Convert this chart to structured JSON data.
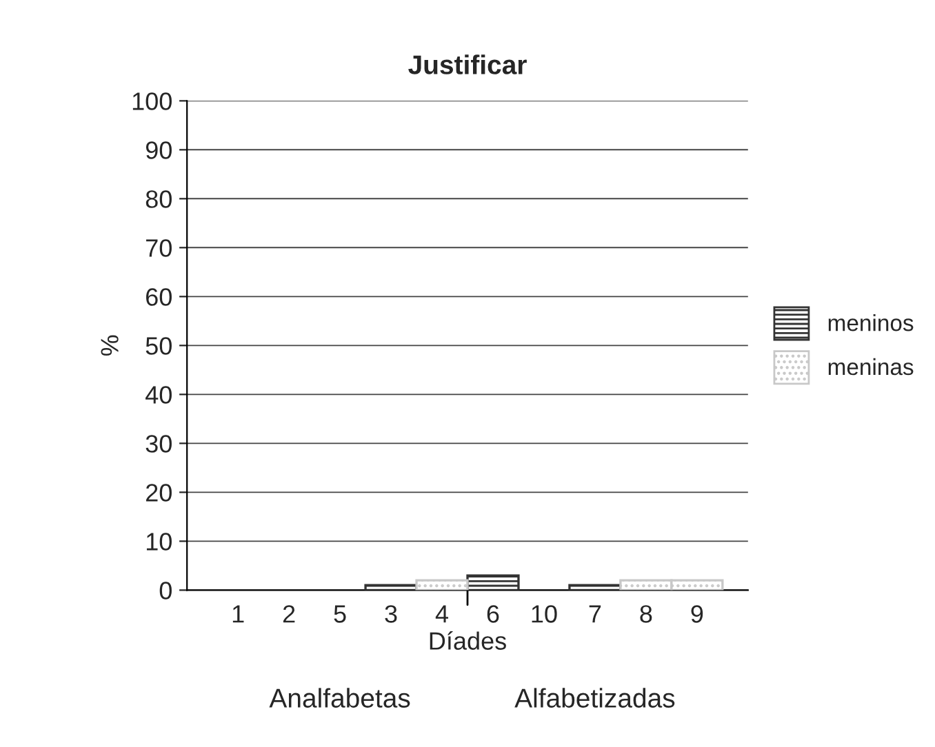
{
  "chart_data": {
    "type": "bar",
    "title": "Justificar",
    "xlabel": "Díades",
    "ylabel": "%",
    "categories": [
      "1",
      "2",
      "5",
      "3",
      "4",
      "6",
      "10",
      "7",
      "8",
      "9"
    ],
    "series": [
      {
        "name": "meninos",
        "color": "#333333",
        "values": [
          null,
          null,
          null,
          1,
          null,
          3,
          null,
          1,
          null,
          null
        ]
      },
      {
        "name": "meninas",
        "color": "#c8c8c8",
        "values": [
          null,
          null,
          null,
          null,
          2,
          null,
          null,
          null,
          2,
          2
        ]
      }
    ],
    "ylim": [
      0,
      100
    ],
    "yticks": [
      0,
      10,
      20,
      30,
      40,
      50,
      60,
      70,
      80,
      90,
      100
    ],
    "grid": "y",
    "legend": "right",
    "annotations": [
      "Analfabetas",
      "Alfabetizadas"
    ]
  }
}
